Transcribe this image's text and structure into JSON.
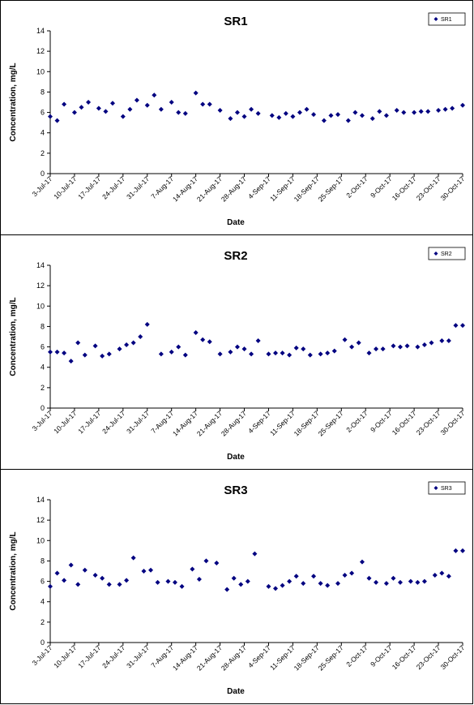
{
  "chart_data": [
    {
      "type": "scatter",
      "title": "SR1",
      "xlabel": "Date",
      "ylabel": "Concentration, mg/L",
      "ylim": [
        0,
        14
      ],
      "yticks": [
        0,
        2,
        4,
        6,
        8,
        10,
        12,
        14
      ],
      "xlim": [
        "3-Jul-17",
        "30-Oct-17"
      ],
      "xticks": [
        "3-Jul-17",
        "10-Jul-17",
        "17-Jul-17",
        "24-Jul-17",
        "31-Jul-17",
        "7-Aug-17",
        "14-Aug-17",
        "21-Aug-17",
        "28-Aug-17",
        "4-Sep-17",
        "11-Sep-17",
        "18-Sep-17",
        "25-Sep-17",
        "2-Oct-17",
        "9-Oct-17",
        "16-Oct-17",
        "23-Oct-17",
        "30-Oct-17"
      ],
      "grid": false,
      "legend_position": "top-right",
      "marker_color": "#000080",
      "series": [
        {
          "name": "SR1",
          "x": [
            "3-Jul-17",
            "5-Jul-17",
            "7-Jul-17",
            "10-Jul-17",
            "12-Jul-17",
            "14-Jul-17",
            "17-Jul-17",
            "19-Jul-17",
            "21-Jul-17",
            "24-Jul-17",
            "26-Jul-17",
            "28-Jul-17",
            "31-Jul-17",
            "2-Aug-17",
            "4-Aug-17",
            "7-Aug-17",
            "9-Aug-17",
            "11-Aug-17",
            "14-Aug-17",
            "16-Aug-17",
            "18-Aug-17",
            "21-Aug-17",
            "24-Aug-17",
            "26-Aug-17",
            "28-Aug-17",
            "30-Aug-17",
            "1-Sep-17",
            "5-Sep-17",
            "7-Sep-17",
            "9-Sep-17",
            "11-Sep-17",
            "13-Sep-17",
            "15-Sep-17",
            "17-Sep-17",
            "20-Sep-17",
            "22-Sep-17",
            "24-Sep-17",
            "27-Sep-17",
            "29-Sep-17",
            "1-Oct-17",
            "4-Oct-17",
            "6-Oct-17",
            "8-Oct-17",
            "11-Oct-17",
            "13-Oct-17",
            "16-Oct-17",
            "18-Oct-17",
            "20-Oct-17",
            "23-Oct-17",
            "25-Oct-17",
            "27-Oct-17",
            "30-Oct-17"
          ],
          "values": [
            5.6,
            5.2,
            6.8,
            6.0,
            6.5,
            7.0,
            6.4,
            6.1,
            6.9,
            5.6,
            6.3,
            7.2,
            6.7,
            7.7,
            6.3,
            7.0,
            6.0,
            5.9,
            7.9,
            6.8,
            6.8,
            6.2,
            5.4,
            6.0,
            5.6,
            6.3,
            5.9,
            5.7,
            5.5,
            5.9,
            5.6,
            6.0,
            6.3,
            5.8,
            5.2,
            5.7,
            5.8,
            5.2,
            6.0,
            5.7,
            5.4,
            6.1,
            5.7,
            6.2,
            6.0,
            6.0,
            6.1,
            6.1,
            6.2,
            6.3,
            6.4,
            6.7
          ]
        }
      ]
    },
    {
      "type": "scatter",
      "title": "SR2",
      "xlabel": "Date",
      "ylabel": "Concentration, mg/L",
      "ylim": [
        0,
        14
      ],
      "yticks": [
        0,
        2,
        4,
        6,
        8,
        10,
        12,
        14
      ],
      "xlim": [
        "3-Jul-17",
        "30-Oct-17"
      ],
      "xticks": [
        "3-Jul-17",
        "10-Jul-17",
        "17-Jul-17",
        "24-Jul-17",
        "31-Jul-17",
        "7-Aug-17",
        "14-Aug-17",
        "21-Aug-17",
        "28-Aug-17",
        "4-Sep-17",
        "11-Sep-17",
        "18-Sep-17",
        "25-Sep-17",
        "2-Oct-17",
        "9-Oct-17",
        "16-Oct-17",
        "23-Oct-17",
        "30-Oct-17"
      ],
      "grid": false,
      "legend_position": "top-right",
      "marker_color": "#000080",
      "series": [
        {
          "name": "SR2",
          "x": [
            "3-Jul-17",
            "5-Jul-17",
            "7-Jul-17",
            "9-Jul-17",
            "11-Jul-17",
            "13-Jul-17",
            "16-Jul-17",
            "18-Jul-17",
            "20-Jul-17",
            "23-Jul-17",
            "25-Jul-17",
            "27-Jul-17",
            "29-Jul-17",
            "31-Jul-17",
            "4-Aug-17",
            "7-Aug-17",
            "9-Aug-17",
            "11-Aug-17",
            "14-Aug-17",
            "16-Aug-17",
            "18-Aug-17",
            "21-Aug-17",
            "24-Aug-17",
            "26-Aug-17",
            "28-Aug-17",
            "30-Aug-17",
            "1-Sep-17",
            "4-Sep-17",
            "6-Sep-17",
            "8-Sep-17",
            "10-Sep-17",
            "12-Sep-17",
            "14-Sep-17",
            "16-Sep-17",
            "19-Sep-17",
            "21-Sep-17",
            "23-Sep-17",
            "26-Sep-17",
            "28-Sep-17",
            "30-Sep-17",
            "3-Oct-17",
            "5-Oct-17",
            "7-Oct-17",
            "10-Oct-17",
            "12-Oct-17",
            "14-Oct-17",
            "17-Oct-17",
            "19-Oct-17",
            "21-Oct-17",
            "24-Oct-17",
            "26-Oct-17",
            "28-Oct-17",
            "30-Oct-17"
          ],
          "values": [
            5.5,
            5.5,
            5.4,
            4.6,
            6.4,
            5.2,
            6.1,
            5.1,
            5.3,
            5.8,
            6.2,
            6.4,
            7.0,
            8.2,
            5.3,
            5.5,
            6.0,
            5.2,
            7.4,
            6.7,
            6.5,
            5.3,
            5.5,
            6.0,
            5.8,
            5.3,
            6.6,
            5.3,
            5.4,
            5.4,
            5.2,
            5.9,
            5.8,
            5.2,
            5.3,
            5.4,
            5.6,
            6.7,
            6.0,
            6.4,
            5.4,
            5.8,
            5.8,
            6.1,
            6.0,
            6.1,
            6.0,
            6.2,
            6.4,
            6.6,
            6.6,
            8.1,
            8.1
          ]
        }
      ]
    },
    {
      "type": "scatter",
      "title": "SR3",
      "xlabel": "Date",
      "ylabel": "Concentration, mg/L",
      "ylim": [
        0,
        14
      ],
      "yticks": [
        0,
        2,
        4,
        6,
        8,
        10,
        12,
        14
      ],
      "xlim": [
        "3-Jul-17",
        "30-Oct-17"
      ],
      "xticks": [
        "3-Jul-17",
        "10-Jul-17",
        "17-Jul-17",
        "24-Jul-17",
        "31-Jul-17",
        "7-Aug-17",
        "14-Aug-17",
        "21-Aug-17",
        "28-Aug-17",
        "4-Sep-17",
        "11-Sep-17",
        "18-Sep-17",
        "25-Sep-17",
        "2-Oct-17",
        "9-Oct-17",
        "16-Oct-17",
        "23-Oct-17",
        "30-Oct-17"
      ],
      "grid": false,
      "legend_position": "top-right",
      "marker_color": "#000080",
      "series": [
        {
          "name": "SR3",
          "x": [
            "3-Jul-17",
            "5-Jul-17",
            "7-Jul-17",
            "9-Jul-17",
            "11-Jul-17",
            "13-Jul-17",
            "16-Jul-17",
            "18-Jul-17",
            "20-Jul-17",
            "23-Jul-17",
            "25-Jul-17",
            "27-Jul-17",
            "30-Jul-17",
            "1-Aug-17",
            "3-Aug-17",
            "6-Aug-17",
            "8-Aug-17",
            "10-Aug-17",
            "13-Aug-17",
            "15-Aug-17",
            "17-Aug-17",
            "20-Aug-17",
            "23-Aug-17",
            "25-Aug-17",
            "27-Aug-17",
            "29-Aug-17",
            "31-Aug-17",
            "4-Sep-17",
            "6-Sep-17",
            "8-Sep-17",
            "10-Sep-17",
            "12-Sep-17",
            "14-Sep-17",
            "17-Sep-17",
            "19-Sep-17",
            "21-Sep-17",
            "24-Sep-17",
            "26-Sep-17",
            "28-Sep-17",
            "1-Oct-17",
            "3-Oct-17",
            "5-Oct-17",
            "8-Oct-17",
            "10-Oct-17",
            "12-Oct-17",
            "15-Oct-17",
            "17-Oct-17",
            "19-Oct-17",
            "22-Oct-17",
            "24-Oct-17",
            "26-Oct-17",
            "28-Oct-17",
            "30-Oct-17"
          ],
          "values": [
            5.5,
            6.8,
            6.1,
            7.6,
            5.7,
            7.1,
            6.6,
            6.3,
            5.7,
            5.7,
            6.1,
            8.3,
            7.0,
            7.1,
            5.9,
            6.0,
            5.9,
            5.5,
            7.2,
            6.2,
            8.0,
            7.8,
            5.2,
            6.3,
            5.7,
            6.0,
            8.7,
            5.5,
            5.3,
            5.6,
            6.0,
            6.5,
            5.8,
            6.5,
            5.8,
            5.6,
            5.8,
            6.6,
            6.8,
            7.9,
            6.3,
            5.9,
            5.8,
            6.3,
            5.9,
            6.0,
            5.9,
            6.0,
            6.6,
            6.8,
            6.5,
            9.0,
            9.0
          ]
        }
      ]
    }
  ]
}
